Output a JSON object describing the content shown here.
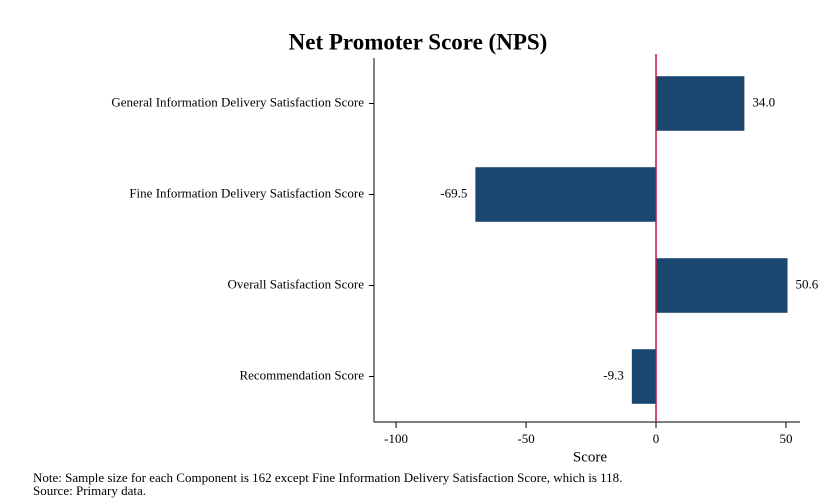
{
  "chart_data": {
    "type": "barh",
    "title": "Net Promoter Score (NPS)",
    "categories": [
      "General Information Delivery Satisfaction Score",
      "Fine Information Delivery Satisfaction Score",
      "Overall Satisfaction Score",
      "Recommendation Score"
    ],
    "values": [
      34,
      -69.5,
      50.6,
      -9.3
    ],
    "value_labels": [
      "34.0",
      "-69.5",
      "50.6",
      "-9.3"
    ],
    "color": "#1a476f",
    "xlabel": "Score",
    "xlim": [
      -108.5,
      55.4
    ],
    "xticks": [
      -100,
      -50,
      0,
      50
    ],
    "xline": 0,
    "xline_color": "#c0143c",
    "notes": [
      "Note: Sample size for each Component is 162 except Fine Information Delivery Satisfaction Score, which is 118.",
      "Source: Primary data."
    ]
  }
}
